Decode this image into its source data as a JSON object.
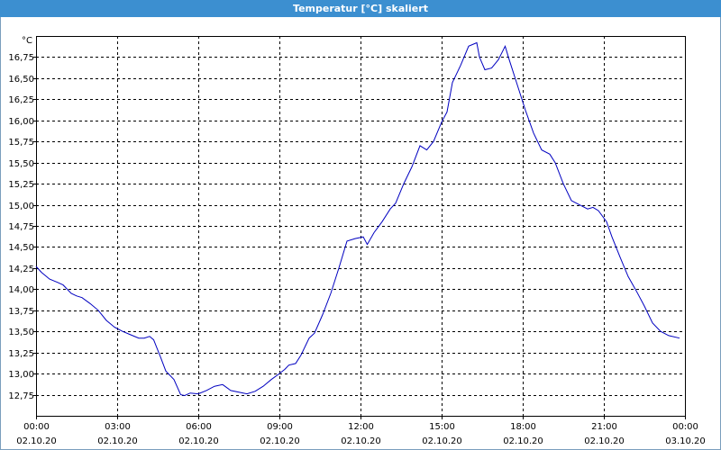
{
  "window": {
    "title": "Temperatur [°C] skaliert"
  },
  "chart_data": {
    "type": "line",
    "title": "Temperatur [°C] skaliert",
    "ylabel": "°C",
    "xlabel": "",
    "ylim": [
      12.5,
      17.0
    ],
    "xlim_hours": [
      0,
      24
    ],
    "grid": true,
    "legend": "none",
    "line_color": "#0000c0",
    "y_ticks": [
      12.75,
      13.0,
      13.25,
      13.5,
      13.75,
      14.0,
      14.25,
      14.5,
      14.75,
      15.0,
      15.25,
      15.5,
      15.75,
      16.0,
      16.25,
      16.5,
      16.75
    ],
    "y_tick_labels": [
      "12,75",
      "13,00",
      "13,25",
      "13,50",
      "13,75",
      "14,00",
      "14,25",
      "14,50",
      "14,75",
      "15,00",
      "15,25",
      "15,50",
      "15,75",
      "16,00",
      "16,25",
      "16,50",
      "16,75"
    ],
    "x_ticks": [
      {
        "time": "00:00",
        "date": "02.10.20",
        "hour": 0
      },
      {
        "time": "03:00",
        "date": "02.10.20",
        "hour": 3
      },
      {
        "time": "06:00",
        "date": "02.10.20",
        "hour": 6
      },
      {
        "time": "09:00",
        "date": "02.10.20",
        "hour": 9
      },
      {
        "time": "12:00",
        "date": "02.10.20",
        "hour": 12
      },
      {
        "time": "15:00",
        "date": "02.10.20",
        "hour": 15
      },
      {
        "time": "18:00",
        "date": "02.10.20",
        "hour": 18
      },
      {
        "time": "21:00",
        "date": "02.10.20",
        "hour": 21
      },
      {
        "time": "00:00",
        "date": "03.10.20",
        "hour": 24
      }
    ],
    "series": [
      {
        "x": [
          0.0,
          0.2,
          0.5,
          0.8,
          1.0,
          1.3,
          1.5,
          1.7,
          2.0,
          2.3,
          2.6,
          2.9,
          3.2,
          3.5,
          3.8,
          4.0,
          4.2,
          4.35,
          4.6,
          4.8,
          5.1,
          5.35,
          5.5,
          5.7,
          6.0,
          6.3,
          6.6,
          6.9,
          7.2,
          7.5,
          7.8,
          8.1,
          8.4,
          8.7,
          9.0,
          9.2,
          9.35,
          9.6,
          9.8,
          10.1,
          10.3,
          10.6,
          10.9,
          11.2,
          11.5,
          11.8,
          12.1,
          12.25,
          12.5,
          12.8,
          13.1,
          13.3,
          13.6,
          13.9,
          14.2,
          14.45,
          14.7,
          15.0,
          15.2,
          15.4,
          15.7,
          16.0,
          16.3,
          16.4,
          16.6,
          16.85,
          17.1,
          17.35,
          17.5,
          17.8,
          18.1,
          18.4,
          18.7,
          19.0,
          19.2,
          19.5,
          19.8,
          20.1,
          20.4,
          20.6,
          20.8,
          21.1,
          21.3,
          21.6,
          21.9,
          22.2,
          22.5,
          22.8,
          23.1,
          23.4,
          23.8
        ],
        "y": [
          14.27,
          14.2,
          14.12,
          14.08,
          14.05,
          13.95,
          13.92,
          13.9,
          13.83,
          13.75,
          13.63,
          13.55,
          13.5,
          13.46,
          13.42,
          13.42,
          13.44,
          13.4,
          13.2,
          13.03,
          12.93,
          12.75,
          12.74,
          12.77,
          12.76,
          12.8,
          12.85,
          12.87,
          12.8,
          12.78,
          12.76,
          12.79,
          12.85,
          12.93,
          13.0,
          13.05,
          13.1,
          13.12,
          13.22,
          13.42,
          13.48,
          13.7,
          13.95,
          14.25,
          14.57,
          14.6,
          14.62,
          14.53,
          14.67,
          14.8,
          14.95,
          15.02,
          15.25,
          15.45,
          15.7,
          15.65,
          15.75,
          15.98,
          16.1,
          16.45,
          16.65,
          16.88,
          16.92,
          16.75,
          16.6,
          16.62,
          16.72,
          16.88,
          16.72,
          16.42,
          16.12,
          15.85,
          15.65,
          15.6,
          15.5,
          15.25,
          15.05,
          15.0,
          14.95,
          14.97,
          14.93,
          14.8,
          14.62,
          14.38,
          14.15,
          13.98,
          13.8,
          13.6,
          13.5,
          13.45,
          13.42
        ]
      }
    ]
  }
}
